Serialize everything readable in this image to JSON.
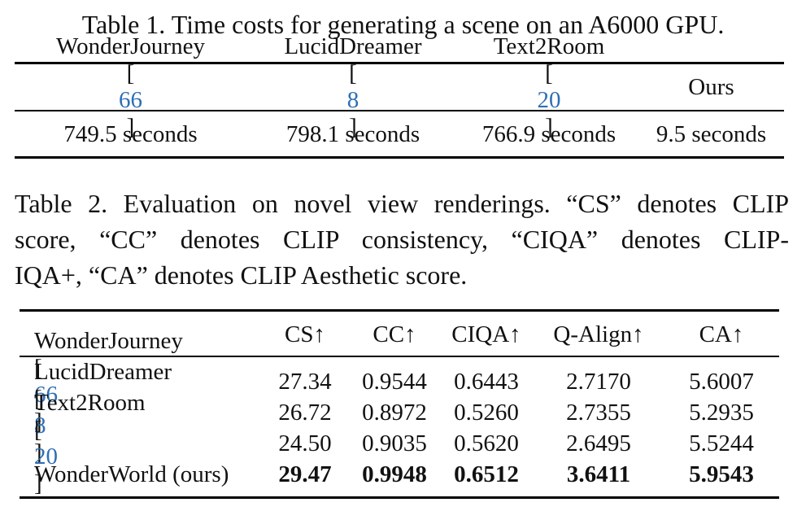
{
  "table1": {
    "caption": "Table 1. Time costs for generating a scene on an A6000 GPU.",
    "header": [
      {
        "name": "WonderJourney",
        "cite": "66"
      },
      {
        "name": "LucidDreamer",
        "cite": "8"
      },
      {
        "name": "Text2Room",
        "cite": "20"
      },
      {
        "name": "Ours",
        "cite": ""
      }
    ],
    "values": [
      "749.5 seconds",
      "798.1 seconds",
      "766.9 seconds",
      "9.5 seconds"
    ]
  },
  "table2": {
    "caption_lines": [
      "Table 2. Evaluation on novel view renderings. “CS” denotes CLIP",
      "score, “CC” denotes CLIP consistency, “CIQA” denotes CLIP-",
      "IQA+, “CA” denotes CLIP Aesthetic score."
    ],
    "columns": [
      "CS↑",
      "CC↑",
      "CIQA↑",
      "Q-Align↑",
      "CA↑"
    ],
    "rows": [
      {
        "method": "WonderJourney",
        "cite": "66",
        "values": [
          "27.34",
          "0.9544",
          "0.6443",
          "2.7170",
          "5.6007"
        ],
        "bold": false
      },
      {
        "method": "LucidDreamer",
        "cite": "8",
        "values": [
          "26.72",
          "0.8972",
          "0.5260",
          "2.7355",
          "5.2935"
        ],
        "bold": false
      },
      {
        "method": "Text2Room",
        "cite": "20",
        "values": [
          "24.50",
          "0.9035",
          "0.5620",
          "2.6495",
          "5.5244"
        ],
        "bold": false
      },
      {
        "method": "WonderWorld (ours)",
        "cite": "",
        "values": [
          "29.47",
          "0.9948",
          "0.6512",
          "3.6411",
          "5.9543"
        ],
        "bold": true
      }
    ]
  }
}
